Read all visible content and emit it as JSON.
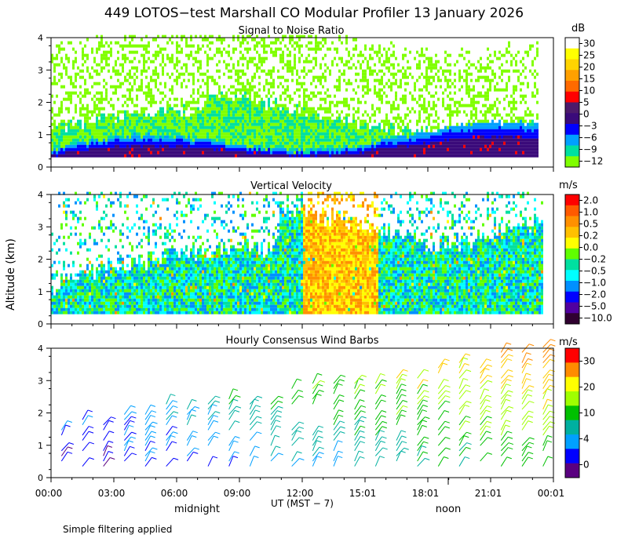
{
  "figure": {
    "title": "449 LOTOS−test Marshall CO Modular Profiler 13 January 2026",
    "y_axis_label": "Altitude (km)",
    "x_axis_label": "UT  (MST − 7)",
    "local_time_labels": [
      "midnight",
      "noon"
    ],
    "footer_note": "Simple filtering applied"
  },
  "chart_data": [
    {
      "type": "heatmap",
      "title": "Signal to Noise Ratio",
      "unit": "dB",
      "colorbar_ticks": [
        "30",
        "25",
        "20",
        "15",
        "10",
        "5",
        "0",
        "−3",
        "−6",
        "−9",
        "−12"
      ],
      "colorbar_colors": [
        "#ffffff",
        "#ffff00",
        "#ffd400",
        "#ffa000",
        "#ff6a00",
        "#ff0000",
        "#4d1a6b",
        "#3a0a7a",
        "#0000ff",
        "#00a0ff",
        "#00e0a0",
        "#80ff00"
      ],
      "ylim": [
        0,
        4
      ],
      "y_ticks": [
        "0",
        "1",
        "2",
        "3",
        "4"
      ],
      "x_ticks": [
        "00:00",
        "03:00",
        "06:00",
        "09:00",
        "12:00",
        "15:01",
        "18:01",
        "21:01",
        "00:01"
      ]
    },
    {
      "type": "heatmap",
      "title": "Vertical Velocity",
      "unit": "m/s",
      "colorbar_ticks": [
        "2.0",
        "1.0",
        "0.5",
        "0.2",
        "0.0",
        "−0.2",
        "−0.5",
        "−1.0",
        "−2.0",
        "−5.0",
        "−10.0"
      ],
      "colorbar_colors": [
        "#ff0000",
        "#ff5a00",
        "#ff9000",
        "#ffc000",
        "#ffff00",
        "#60ff00",
        "#00e0a0",
        "#00ffff",
        "#0090ff",
        "#0000ff",
        "#5000a0",
        "#300030"
      ],
      "ylim": [
        0,
        4
      ],
      "y_ticks": [
        "0",
        "1",
        "2",
        "3",
        "4"
      ],
      "x_ticks": [
        "00:00",
        "03:00",
        "06:00",
        "09:00",
        "12:00",
        "15:01",
        "18:01",
        "21:01",
        "00:01"
      ]
    },
    {
      "type": "scatter",
      "title": "Hourly Consensus Wind Barbs",
      "unit": "m/s",
      "colorbar_ticks": [
        "30",
        "20",
        "10",
        "4",
        "0"
      ],
      "colorbar_colors": [
        "#ff0000",
        "#ff8c00",
        "#ffff00",
        "#a0ff00",
        "#00c000",
        "#00b0a0",
        "#00a0ff",
        "#0000ff",
        "#5a0080"
      ],
      "ylim": [
        0,
        4
      ],
      "y_ticks": [
        "0",
        "1",
        "2",
        "3",
        "4"
      ],
      "x_ticks": [
        "00:00",
        "03:00",
        "06:00",
        "09:00",
        "12:00",
        "15:01",
        "18:01",
        "21:01",
        "00:01"
      ]
    }
  ]
}
